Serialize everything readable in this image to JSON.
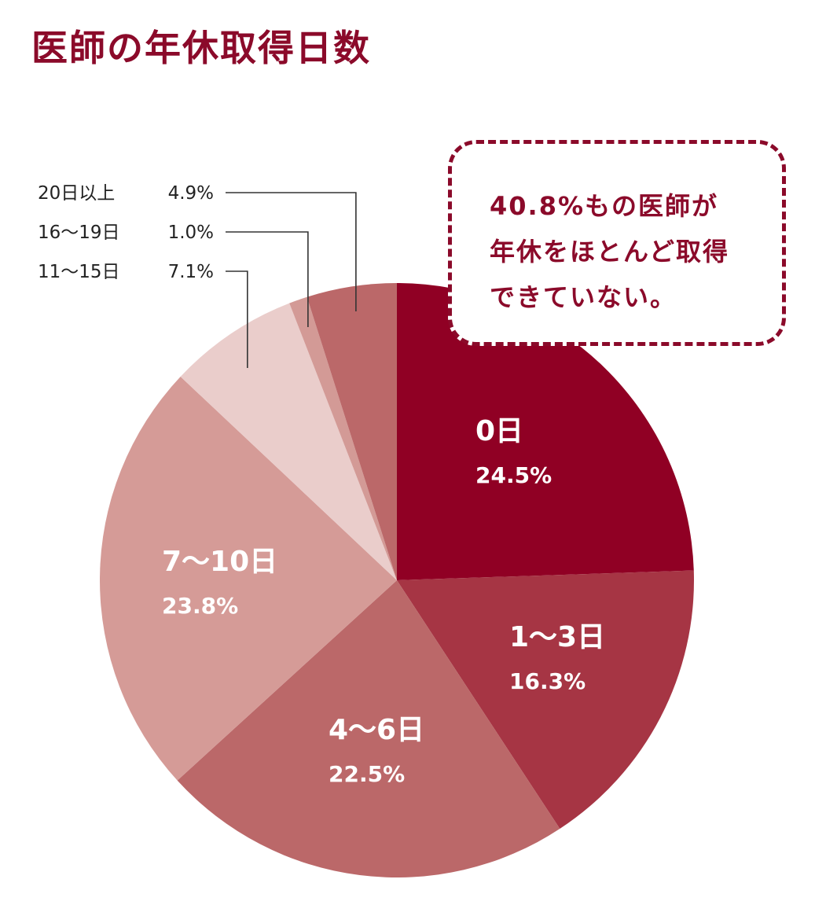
{
  "title": "医師の年休取得日数",
  "callout": {
    "lines": [
      "40.8%もの医師が",
      "年休をほとんど取得",
      "できていない。"
    ]
  },
  "chart_data": {
    "type": "pie",
    "title": "医師の年休取得日数",
    "slices": [
      {
        "label": "0日",
        "value": 24.5,
        "value_label": "24.5%",
        "color": "#900024",
        "label_placement": "inside"
      },
      {
        "label": "1～3日",
        "value": 16.3,
        "value_label": "16.3%",
        "color": "#a63544",
        "label_placement": "inside"
      },
      {
        "label": "4～6日",
        "value": 22.5,
        "value_label": "22.5%",
        "color": "#bb6869",
        "label_placement": "inside"
      },
      {
        "label": "7～10日",
        "value": 23.8,
        "value_label": "23.8%",
        "color": "#d59b97",
        "label_placement": "inside"
      },
      {
        "label": "11～15日",
        "value": 7.1,
        "value_label": "7.1%",
        "color": "#eacdcb",
        "label_placement": "leader"
      },
      {
        "label": "16～19日",
        "value": 1.0,
        "value_label": "1.0%",
        "color": "#d39a96",
        "label_placement": "leader"
      },
      {
        "label": "20日以上",
        "value": 4.9,
        "value_label": "4.9%",
        "color": "#bb6869",
        "label_placement": "leader"
      }
    ],
    "start": "12 o'clock",
    "direction": "clockwise"
  }
}
